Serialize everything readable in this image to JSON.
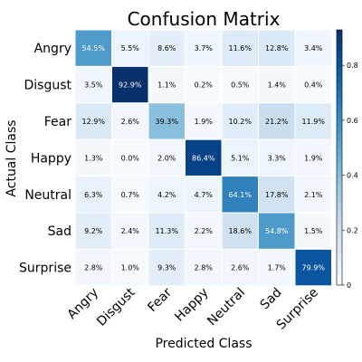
{
  "chart_data": {
    "type": "heatmap",
    "title": "Confusion Matrix",
    "xlabel": "Predicted Class",
    "ylabel": "Actual Class",
    "x_categories": [
      "Angry",
      "Disgust",
      "Fear",
      "Happy",
      "Neutral",
      "Sad",
      "Surprise"
    ],
    "y_categories": [
      "Angry",
      "Disgust",
      "Fear",
      "Happy",
      "Neutral",
      "Sad",
      "Surprise"
    ],
    "values": [
      [
        0.545,
        0.055,
        0.086,
        0.037,
        0.116,
        0.128,
        0.034
      ],
      [
        0.035,
        0.929,
        0.011,
        0.002,
        0.005,
        0.014,
        0.004
      ],
      [
        0.129,
        0.026,
        0.393,
        0.019,
        0.102,
        0.212,
        0.119
      ],
      [
        0.013,
        0.0,
        0.02,
        0.864,
        0.051,
        0.033,
        0.019
      ],
      [
        0.063,
        0.007,
        0.042,
        0.047,
        0.641,
        0.178,
        0.021
      ],
      [
        0.092,
        0.024,
        0.113,
        0.022,
        0.186,
        0.548,
        0.015
      ],
      [
        0.028,
        0.01,
        0.093,
        0.028,
        0.026,
        0.017,
        0.799
      ]
    ],
    "cell_labels": [
      [
        "54.5%",
        "5.5%",
        "8.6%",
        "3.7%",
        "11.6%",
        "12.8%",
        "3.4%"
      ],
      [
        "3.5%",
        "92.9%",
        "1.1%",
        "0.2%",
        "0.5%",
        "1.4%",
        "0.4%"
      ],
      [
        "12.9%",
        "2.6%",
        "39.3%",
        "1.9%",
        "10.2%",
        "21.2%",
        "11.9%"
      ],
      [
        "1.3%",
        "0.0%",
        "2.0%",
        "86.4%",
        "5.1%",
        "3.3%",
        "1.9%"
      ],
      [
        "6.3%",
        "0.7%",
        "4.2%",
        "4.7%",
        "64.1%",
        "17.8%",
        "2.1%"
      ],
      [
        "9.2%",
        "2.4%",
        "11.3%",
        "2.2%",
        "18.6%",
        "54.8%",
        "1.5%"
      ],
      [
        "2.8%",
        "1.0%",
        "9.3%",
        "2.8%",
        "2.6%",
        "1.7%",
        "79.9%"
      ]
    ],
    "colorbar": {
      "range": [
        0,
        0.929
      ],
      "ticks": [
        0,
        0.2,
        0.4,
        0.6,
        0.8
      ],
      "tick_labels": [
        "0",
        "0.2",
        "0.4",
        "0.6",
        "0.8"
      ]
    },
    "colormap": "Blues",
    "colors": {
      "low": "#f7fbff",
      "high": "#08306b"
    }
  }
}
